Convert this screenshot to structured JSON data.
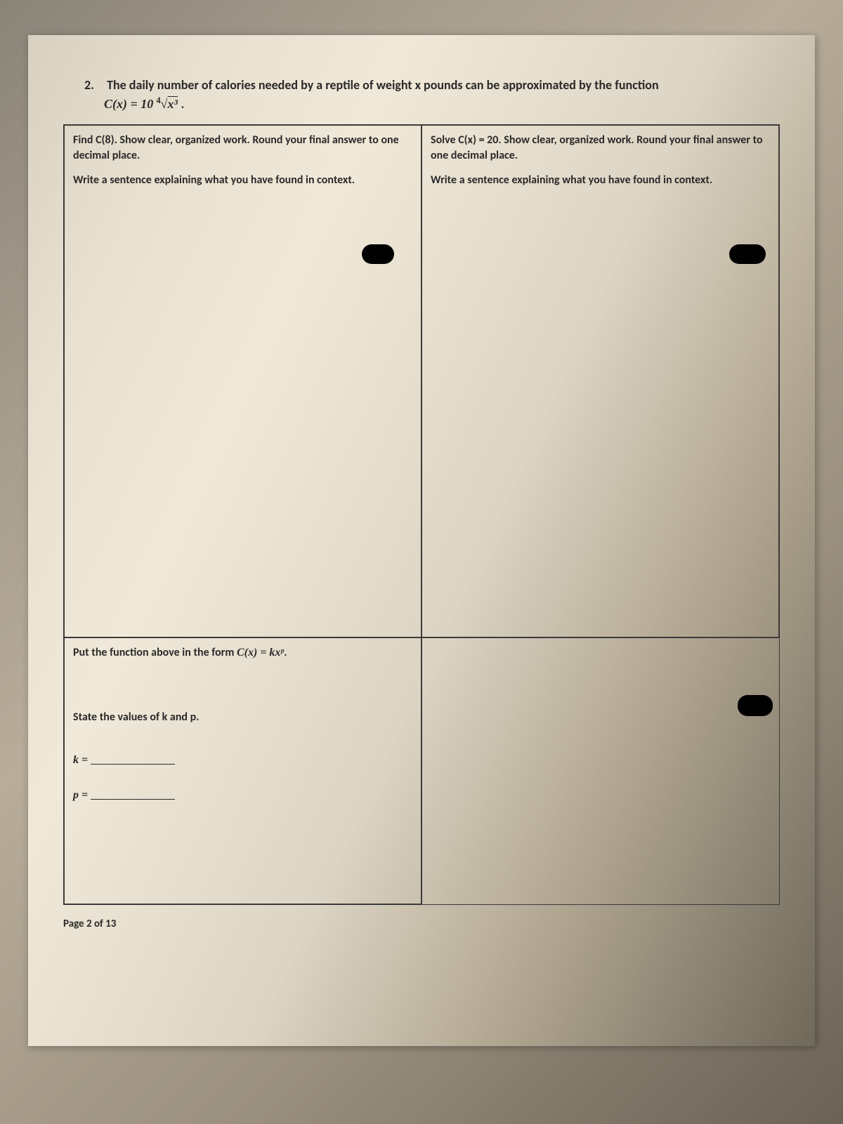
{
  "problem": {
    "number": "2.",
    "text": "The daily number of calories needed by a reptile of weight x pounds can be approximated by the function",
    "formula_lhs": "C(x) = 10",
    "formula_root_index": "4",
    "formula_radicand": "x³",
    "formula_suffix": "."
  },
  "cells": {
    "top_left": {
      "line1": "Find C(8). Show clear, organized work. Round your final answer to one decimal place.",
      "line2": "Write a sentence explaining what you have found in context."
    },
    "top_right": {
      "line1": "Solve C(x) = 20.  Show clear, organized work. Round your final answer to one decimal place.",
      "line2": "Write a sentence explaining what you have found in context."
    },
    "bottom_left": {
      "line1_prefix": "Put the function above in the form ",
      "line1_formula": "C(x) = kxᵖ",
      "line1_suffix": ".",
      "state": "State the values of k and p.",
      "k_label": "k =",
      "p_label": "p ="
    }
  },
  "footer": {
    "page_label": "Page 2 of 13"
  },
  "colors": {
    "text": "#2a2a2a",
    "border": "#3a3a3a",
    "redaction": "#000000"
  }
}
